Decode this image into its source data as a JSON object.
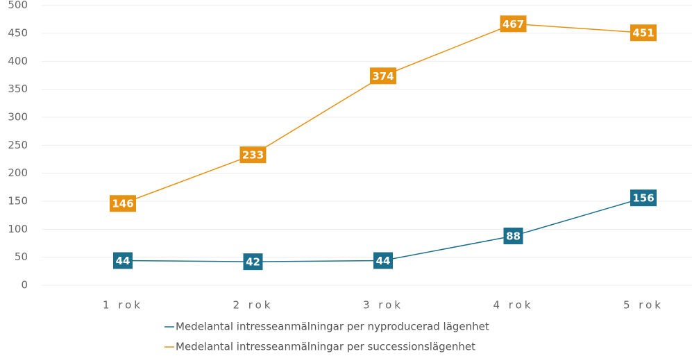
{
  "chart_data": {
    "type": "line",
    "categories": [
      "1 rok",
      "2 rok",
      "3 rok",
      "4 rok",
      "5 rok"
    ],
    "series": [
      {
        "name": "Medelantal intresseanmälningar per nyproducerad lägenhet",
        "color": "#1b6e8c",
        "values": [
          44,
          42,
          44,
          88,
          156
        ]
      },
      {
        "name": "Medelantal intresseanmälningar per successionslägenhet",
        "color": "#e8900f",
        "values": [
          146,
          233,
          374,
          467,
          451
        ]
      }
    ],
    "ylim": [
      0,
      500
    ],
    "yticks": [
      0,
      50,
      100,
      150,
      200,
      250,
      300,
      350,
      400,
      450,
      500
    ],
    "grid": true
  }
}
